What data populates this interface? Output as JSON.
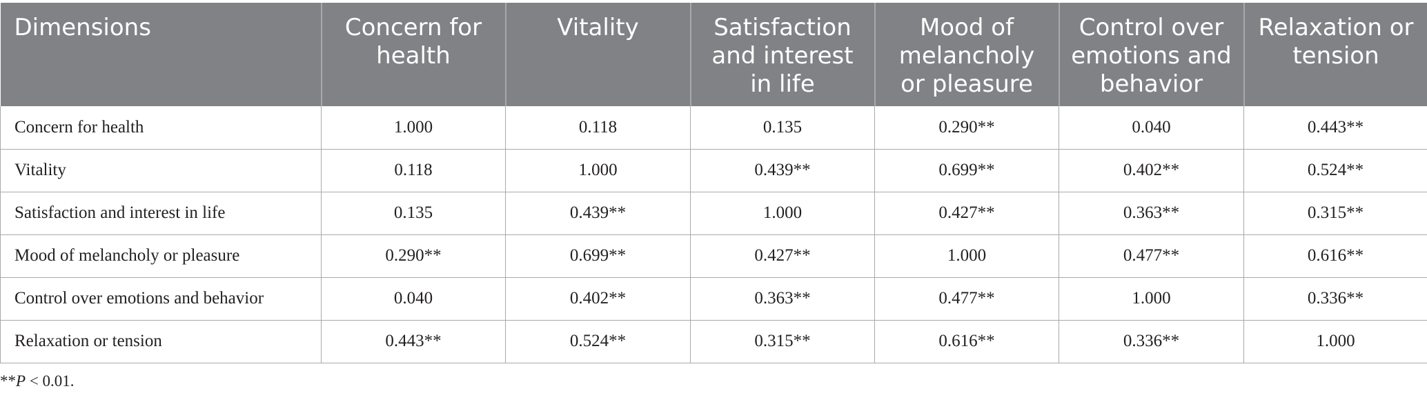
{
  "table": {
    "headers": [
      "Dimensions",
      "Concern for health",
      "Vitality",
      "Satisfaction and interest in life",
      "Mood of melancholy or pleasure",
      "Control over emotions and behavior",
      "Relaxation or tension"
    ],
    "rows": [
      [
        "Concern for health",
        "1.000",
        "0.118",
        "0.135",
        "0.290**",
        "0.040",
        "0.443**"
      ],
      [
        "Vitality",
        "0.118",
        "1.000",
        "0.439**",
        "0.699**",
        "0.402**",
        "0.524**"
      ],
      [
        "Satisfaction and interest in life",
        "0.135",
        "0.439**",
        "1.000",
        "0.427**",
        "0.363**",
        "0.315**"
      ],
      [
        "Mood of melancholy or pleasure",
        "0.290**",
        "0.699**",
        "0.427**",
        "1.000",
        "0.477**",
        "0.616**"
      ],
      [
        "Control over emotions and behavior",
        "0.040",
        "0.402**",
        "0.363**",
        "0.477**",
        "1.000",
        "0.336**"
      ],
      [
        "Relaxation or tension",
        "0.443**",
        "0.524**",
        "0.315**",
        "0.616**",
        "0.336**",
        "1.000"
      ]
    ]
  },
  "footnote": {
    "prefix": "**",
    "symbol": "P",
    "rest": " < 0.01."
  },
  "colors": {
    "header_bg": "#808285",
    "header_text": "#ffffff",
    "grid": "#a7a9ab",
    "body_text": "#231f20"
  }
}
